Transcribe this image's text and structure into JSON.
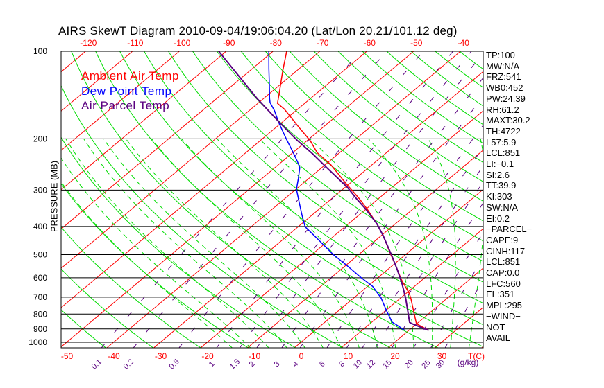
{
  "title": "AIRS SkewT Diagram 2010-09-04/19:06:04.20 (Lat/Lon 20.21/101.12 deg)",
  "legend": [
    {
      "label": "Ambient Air Temp",
      "color": "#ff0000"
    },
    {
      "label": "Dew Point Temp",
      "color": "#0000ff"
    },
    {
      "label": "Air Parcel Temp",
      "color": "#5a0080"
    }
  ],
  "indices": [
    "TP:100",
    "MW:N/A",
    "FRZ:541",
    "WB0:452",
    "PW:24.39",
    "RH:61.2",
    "MAXT:30.2",
    "TH:4722",
    "L57:5.9",
    "LCL:851",
    "LI:−0.1",
    "SI:2.6",
    "TT:39.9",
    "KI:303",
    "SW:N/A",
    "EI:0.2",
    "−PARCEL−",
    "CAPE:9",
    "CINH:117",
    "LCL:851",
    "CAP:0.0",
    "LFC:560",
    "EL:351",
    "MPL:295",
    "−WIND−",
    "NOT",
    "AVAIL"
  ],
  "chart_data": {
    "type": "line",
    "title": "AIRS SkewT Diagram 2010-09-04/19:06:04.20 (Lat/Lon 20.21/101.12 deg)",
    "xlabel": "T(C)",
    "ylabel": "PRESSURE (MB)",
    "mixing_ratio_unit": "(g/kg)",
    "ylim": [
      1050,
      100
    ],
    "grid": true,
    "legend_placement": "top-left",
    "pressure_ticks": [
      "100",
      "200",
      "300",
      "400",
      "500",
      "600",
      "700",
      "800",
      "900",
      "1000"
    ],
    "top_temperature_ticks": [
      "-120",
      "-110",
      "-100",
      "-90",
      "-80",
      "-70",
      "-60",
      "-50",
      "-40"
    ],
    "bottom_temperature_ticks": [
      "-50",
      "-40",
      "-30",
      "-20",
      "-10",
      "0",
      "10",
      "20",
      "30"
    ],
    "mixing_ratio_ticks": [
      "0.1",
      "0.2",
      "0.5",
      "1",
      "1.5",
      "2",
      "3",
      "4",
      "6",
      "8",
      "10",
      "12",
      "15",
      "20",
      "25",
      "30"
    ],
    "series": [
      {
        "name": "Ambient Air Temp",
        "color": "#ff0000",
        "points": [
          [
            100,
            -77.1
          ],
          [
            117,
            -72.9
          ],
          [
            136,
            -68.7
          ],
          [
            151,
            -65.8
          ],
          [
            158,
            -62.9
          ],
          [
            182,
            -55.3
          ],
          [
            203,
            -49.3
          ],
          [
            223,
            -44.8
          ],
          [
            245,
            -38.9
          ],
          [
            282,
            -31.3
          ],
          [
            301,
            -27.7
          ],
          [
            321,
            -24.1
          ],
          [
            351,
            -19.4
          ],
          [
            392,
            -13.9
          ],
          [
            430,
            -9.6
          ],
          [
            499,
            -3.2
          ],
          [
            545,
            0.7
          ],
          [
            608,
            5.4
          ],
          [
            680,
            10.7
          ],
          [
            707,
            12.3
          ],
          [
            863,
            19.9
          ],
          [
            910,
            24.2
          ]
        ]
      },
      {
        "name": "Dew Point Temp",
        "color": "#0000ff",
        "points": [
          [
            100,
            -80.9
          ],
          [
            115,
            -76.4
          ],
          [
            131,
            -72.1
          ],
          [
            145,
            -68.8
          ],
          [
            150,
            -67.6
          ],
          [
            160,
            -64.6
          ],
          [
            176,
            -60.6
          ],
          [
            200,
            -54.9
          ],
          [
            223,
            -49.9
          ],
          [
            239,
            -46.8
          ],
          [
            251,
            -44.7
          ],
          [
            273,
            -42.3
          ],
          [
            298,
            -39.9
          ],
          [
            326,
            -36.5
          ],
          [
            365,
            -32.2
          ],
          [
            401,
            -28.5
          ],
          [
            447,
            -22.0
          ],
          [
            499,
            -15.5
          ],
          [
            545,
            -9.7
          ],
          [
            598,
            -3.8
          ],
          [
            643,
            1.1
          ],
          [
            704,
            5.8
          ],
          [
            777,
            10.1
          ],
          [
            854,
            14.4
          ],
          [
            867,
            15.6
          ],
          [
            910,
            19.1
          ]
        ]
      },
      {
        "name": "Air Parcel Temp",
        "color": "#5a0080",
        "points": [
          [
            100,
            -91.6
          ],
          [
            145,
            -71.5
          ],
          [
            176,
            -60.4
          ],
          [
            202,
            -52.3
          ],
          [
            225,
            -45.5
          ],
          [
            253,
            -38.5
          ],
          [
            293,
            -29.6
          ],
          [
            321,
            -24.7
          ],
          [
            351,
            -19.7
          ],
          [
            392,
            -13.9
          ],
          [
            430,
            -9.6
          ],
          [
            507,
            -2.4
          ],
          [
            566,
            2.3
          ],
          [
            633,
            6.9
          ],
          [
            707,
            11.2
          ],
          [
            854,
            18.1
          ],
          [
            863,
            18.9
          ],
          [
            910,
            24.2
          ]
        ]
      }
    ]
  }
}
